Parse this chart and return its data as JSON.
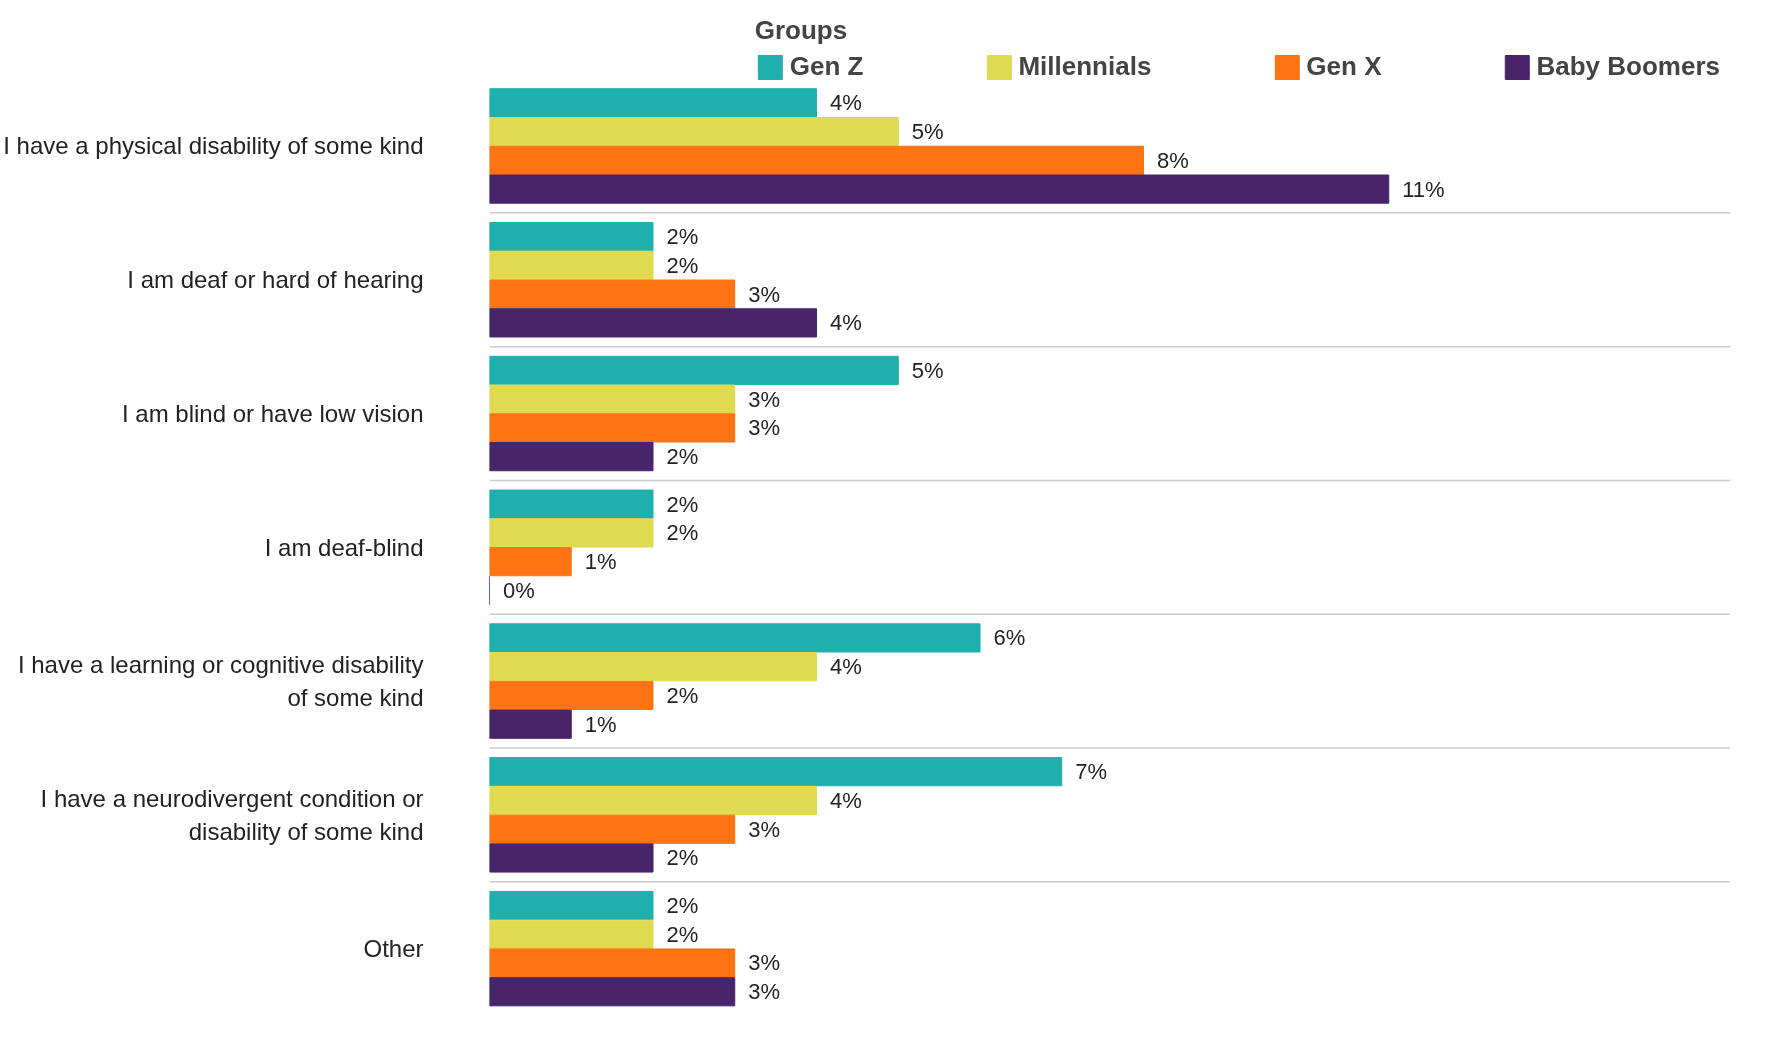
{
  "chart_data": {
    "type": "bar",
    "orientation": "horizontal",
    "legend_title": "Groups",
    "legend": "top",
    "grid": false,
    "data_labels": true,
    "categories": [
      "I have a physical disability of some kind",
      "I am deaf or hard of hearing",
      "I am blind or have low vision",
      "I am deaf-blind",
      "I have a learning or cognitive disability of some kind",
      "I have a neurodivergent condition or disability of some kind",
      "Other"
    ],
    "series": [
      {
        "name": "Gen Z",
        "color": "#1fb0ad",
        "values": [
          4,
          2,
          5,
          2,
          6,
          7,
          2
        ],
        "value_labels": [
          "4%",
          "2%",
          "5%",
          "2%",
          "6%",
          "7%",
          "2%"
        ]
      },
      {
        "name": "Millennials",
        "color": "#e0da50",
        "values": [
          5,
          2,
          3,
          2,
          4,
          4,
          2
        ],
        "value_labels": [
          "5%",
          "2%",
          "3%",
          "2%",
          "4%",
          "4%",
          "2%"
        ]
      },
      {
        "name": "Gen X",
        "color": "#fe7414",
        "values": [
          8,
          3,
          3,
          1,
          2,
          3,
          3
        ],
        "value_labels": [
          "8%",
          "3%",
          "3%",
          "1%",
          "2%",
          "3%",
          "3%"
        ]
      },
      {
        "name": "Baby Boomers",
        "color": "#472568",
        "values": [
          11,
          4,
          2,
          0,
          1,
          2,
          3
        ],
        "value_labels": [
          "11%",
          "4%",
          "2%",
          "0%",
          "1%",
          "2%",
          "3%"
        ]
      }
    ]
  }
}
